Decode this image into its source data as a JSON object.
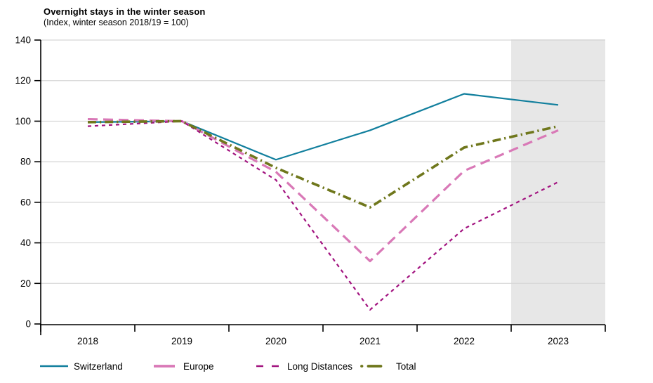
{
  "chart_data": {
    "type": "line",
    "title": "Overnight stays in the winter season",
    "subtitle": "(Index, winter season 2018/19 = 100)",
    "categories": [
      "2018",
      "2019",
      "2020",
      "2021",
      "2022",
      "2023"
    ],
    "series": [
      {
        "name": "Switzerland",
        "color": "#117f9d",
        "dash": "solid",
        "width": 2.2,
        "values": [
          99.5,
          100,
          81,
          95.5,
          113.5,
          108
        ]
      },
      {
        "name": "Europe",
        "color": "#d979b7",
        "dash": "long-dash",
        "width": 3.2,
        "values": [
          101,
          100,
          75,
          31,
          75.5,
          95.5
        ]
      },
      {
        "name": "Long Distances",
        "color": "#a2127f",
        "dash": "short-dash",
        "width": 2.2,
        "values": [
          97.5,
          100,
          71,
          7,
          47,
          70
        ]
      },
      {
        "name": "Total",
        "color": "#6f771c",
        "dash": "dash-dot",
        "width": 3.6,
        "values": [
          99.5,
          100,
          77,
          57.5,
          87,
          97.5
        ]
      }
    ],
    "ylim": [
      0,
      140
    ],
    "yticks": [
      0,
      20,
      40,
      60,
      80,
      100,
      120,
      140
    ],
    "grid": true,
    "legend_position": "bottom",
    "forecast_region": {
      "from": 2022.5,
      "to": 2023.5,
      "color": "#e7e7e7"
    },
    "colors": {
      "grid": "#d6d6d6",
      "axis": "#000000",
      "background": "#ffffff"
    }
  }
}
